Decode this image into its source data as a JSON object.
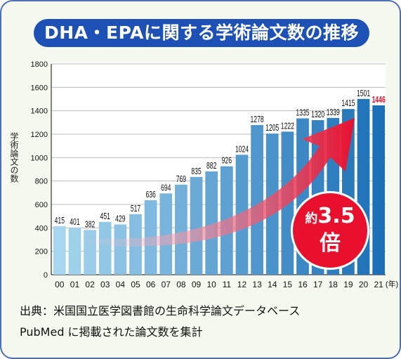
{
  "title": "DHA・EPAに関する学術論文数の推移",
  "source_line1": "出典：米国国立医学図書館の生命科学論文データベース",
  "source_line2": "PubMed に掲載された論文数を集計",
  "badge": {
    "prefix": "約",
    "number": "3.5",
    "suffix": "倍"
  },
  "colors": {
    "title_bg": "#1d51b5",
    "frame_border": "#4c6fb4",
    "frame_bg": "#f6f9ef",
    "highlight": "#e8102d",
    "bar_light": "#a7d6ee",
    "bar_dark": "#1b70b8"
  },
  "chart_data": {
    "type": "bar",
    "ylabel": "学術論文の数",
    "xunit": "(年)",
    "ylim": [
      0,
      1800
    ],
    "yticks": [
      0,
      200,
      400,
      600,
      800,
      1000,
      1200,
      1400,
      1600,
      1800
    ],
    "categories": [
      "00",
      "01",
      "02",
      "03",
      "04",
      "05",
      "06",
      "07",
      "08",
      "09",
      "10",
      "11",
      "12",
      "13",
      "14",
      "15",
      "16",
      "17",
      "18",
      "19",
      "20",
      "21"
    ],
    "values": [
      415,
      401,
      382,
      451,
      429,
      517,
      636,
      694,
      769,
      835,
      882,
      926,
      1024,
      1278,
      1205,
      1222,
      1335,
      1320,
      1339,
      1415,
      1501,
      1446
    ],
    "highlight_index": 21,
    "grid": true
  }
}
